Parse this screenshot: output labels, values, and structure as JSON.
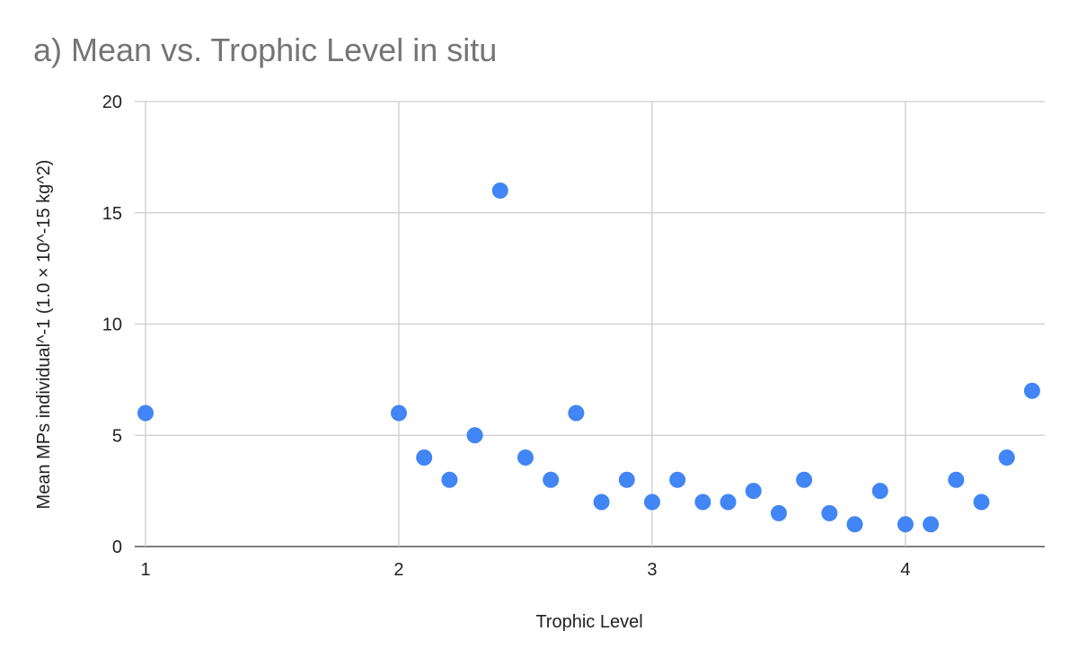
{
  "chart_data": {
    "type": "scatter",
    "title": "a) Mean vs. Trophic Level in situ",
    "x_label": "Trophic Level",
    "y_label": "Mean MPs individual^-1 (1.0 × 10^-15 kg^2)",
    "color": "#4285f4",
    "grid": true,
    "x": [
      1,
      2,
      2.1,
      2.2,
      2.3,
      2.4,
      2.5,
      2.6,
      2.7,
      2.8,
      2.9,
      3,
      3.1,
      3.2,
      3.3,
      3.4,
      3.5,
      3.6,
      3.7,
      3.8,
      3.9,
      4,
      4.1,
      4.2,
      4.3,
      4.4,
      4.5
    ],
    "values": [
      6,
      6,
      4,
      3,
      5,
      16,
      4,
      3,
      6,
      2,
      3,
      2,
      3,
      2,
      2,
      2.5,
      1.5,
      3,
      1.5,
      1,
      2.5,
      1,
      1,
      3,
      2,
      4,
      7
    ],
    "xlim": [
      1,
      4.55
    ],
    "xticks": [
      1,
      2,
      3,
      4
    ],
    "ylim": [
      0,
      20
    ],
    "yticks": [
      0,
      5,
      10,
      15,
      20
    ]
  }
}
